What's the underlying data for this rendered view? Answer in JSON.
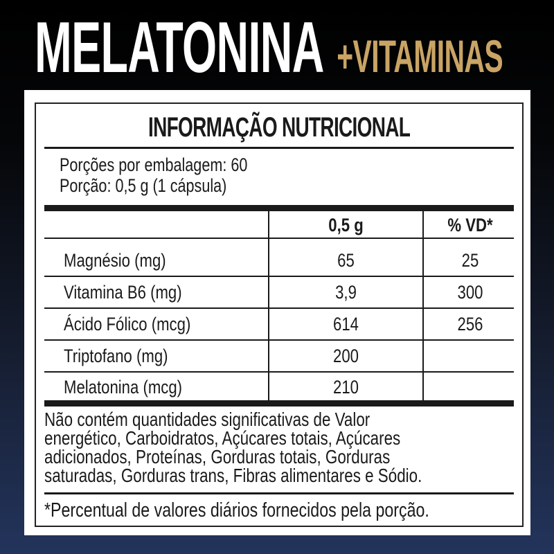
{
  "brand": {
    "title": "MELATONINA",
    "subtitle": "+VITAMINAS",
    "accent_color": "#c9a465"
  },
  "label": {
    "heading": "INFORMAÇÃO NUTRICIONAL",
    "servings_per_package": "Porções por embalagem: 60",
    "serving_size": "Porção: 0,5 g (1 cápsula)",
    "columns": [
      "",
      "0,5 g",
      "% VD*"
    ],
    "rows": [
      {
        "nutrient": "Magnésio (mg)",
        "amount": "65",
        "dv": "25"
      },
      {
        "nutrient": "Vitamina B6 (mg)",
        "amount": "3,9",
        "dv": "300"
      },
      {
        "nutrient": "Ácido Fólico (mcg)",
        "amount": "614",
        "dv": "256"
      },
      {
        "nutrient": "Triptofano (mg)",
        "amount": "200",
        "dv": ""
      },
      {
        "nutrient": "Melatonina (mcg)",
        "amount": "210",
        "dv": ""
      }
    ],
    "note_lines": [
      "Não contém quantidades significativas de Valor",
      "energético, Carboidratos, Açúcares totais, Açúcares",
      "adicionados, Proteínas, Gorduras totais, Gorduras",
      "saturadas, Gorduras trans, Fibras alimentares e Sódio."
    ],
    "footnote": "*Percentual de valores diários fornecidos pela porção."
  }
}
